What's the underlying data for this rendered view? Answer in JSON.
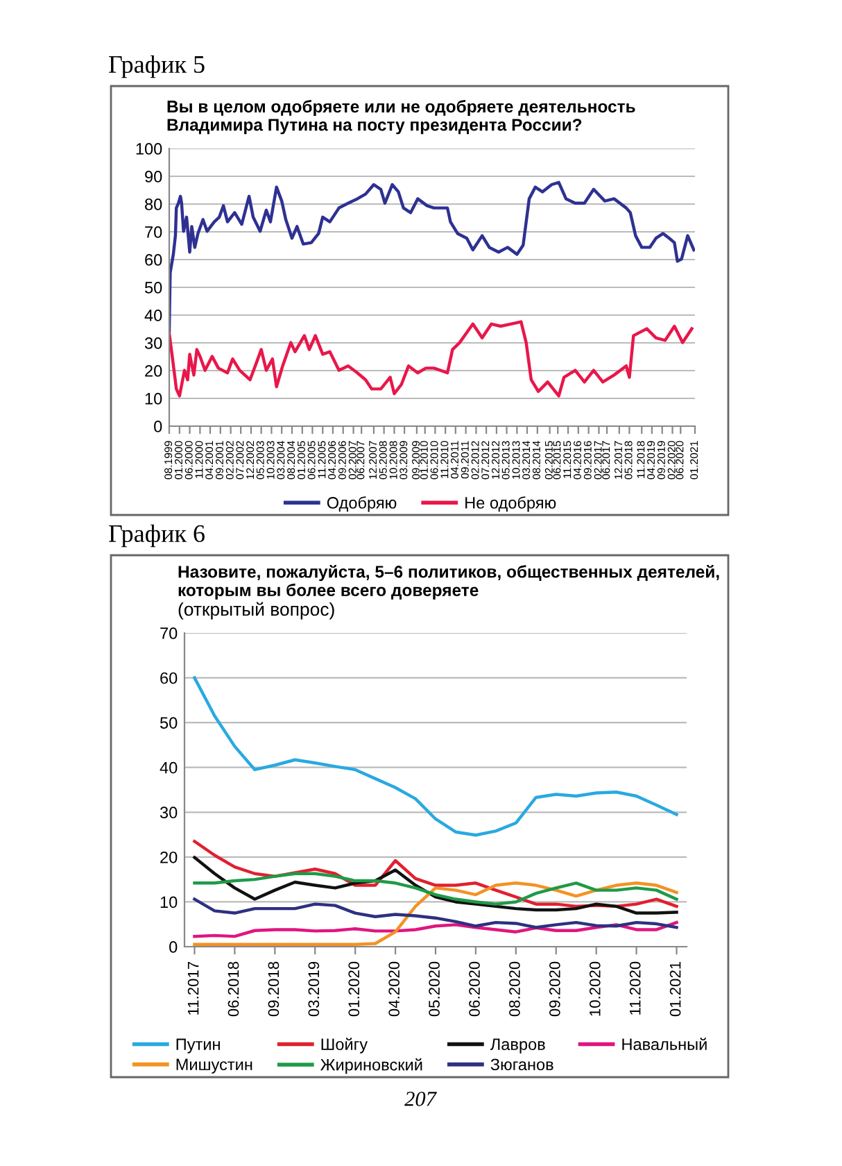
{
  "chart_data": [
    {
      "type": "line",
      "title": "График 5",
      "subtitle": "Вы в целом одобряете или не одобряете деятельность\nВладимира Путина на посту президента России?",
      "xlim": [
        "1999-08",
        "2021-01"
      ],
      "xticks": [
        {
          "value": "1999-08",
          "label": "08.1999"
        },
        {
          "value": "2000-01",
          "label": "01.2000"
        },
        {
          "value": "2000-06",
          "label": "06.2000"
        },
        {
          "value": "2000-11",
          "label": "11.2000"
        },
        {
          "value": "2001-04",
          "label": "04.2001"
        },
        {
          "value": "2001-09",
          "label": "09.2001"
        },
        {
          "value": "2002-02",
          "label": "02.2002"
        },
        {
          "value": "2002-07",
          "label": "07.2002"
        },
        {
          "value": "2002-12",
          "label": "12.2002"
        },
        {
          "value": "2003-05",
          "label": "05.2003"
        },
        {
          "value": "2003-10",
          "label": "10.2003"
        },
        {
          "value": "2004-03",
          "label": "03.2004"
        },
        {
          "value": "2004-08",
          "label": "08.2004"
        },
        {
          "value": "2005-01",
          "label": "01.2005"
        },
        {
          "value": "2005-06",
          "label": "06.2005"
        },
        {
          "value": "2005-11",
          "label": "11.2005"
        },
        {
          "value": "2006-04",
          "label": "04.2006"
        },
        {
          "value": "2006-09",
          "label": "09.2006"
        },
        {
          "value": "2007-02",
          "label": "02.2007"
        },
        {
          "value": "2007-06",
          "label": "06.2007"
        },
        {
          "value": "2007-12",
          "label": "12.2007"
        },
        {
          "value": "2008-05",
          "label": "05.2008"
        },
        {
          "value": "2008-10",
          "label": "10.2008"
        },
        {
          "value": "2009-03",
          "label": "03.2009"
        },
        {
          "value": "2009-09",
          "label": "09.2009"
        },
        {
          "value": "2010-01",
          "label": "01.2010"
        },
        {
          "value": "2010-06",
          "label": "06.2010"
        },
        {
          "value": "2010-11",
          "label": "11.2010"
        },
        {
          "value": "2011-04",
          "label": "04.2011"
        },
        {
          "value": "2011-09",
          "label": "09.2011"
        },
        {
          "value": "2012-02",
          "label": "02.2012"
        },
        {
          "value": "2012-07",
          "label": "07.2012"
        },
        {
          "value": "2012-12",
          "label": "12.2012"
        },
        {
          "value": "2013-05",
          "label": "05.2013"
        },
        {
          "value": "2013-10",
          "label": "10.2013"
        },
        {
          "value": "2014-03",
          "label": "03.2014"
        },
        {
          "value": "2014-08",
          "label": "08.2014"
        },
        {
          "value": "2015-02",
          "label": "02.2015"
        },
        {
          "value": "2015-06",
          "label": "06.2015"
        },
        {
          "value": "2015-11",
          "label": "11.2015"
        },
        {
          "value": "2016-04",
          "label": "04.2016"
        },
        {
          "value": "2016-09",
          "label": "09.2016"
        },
        {
          "value": "2017-02",
          "label": "02.2017"
        },
        {
          "value": "2017-06",
          "label": "06.2017"
        },
        {
          "value": "2017-12",
          "label": "12.2017"
        },
        {
          "value": "2018-05",
          "label": "05.2018"
        },
        {
          "value": "2018-11",
          "label": "11.2018"
        },
        {
          "value": "2019-04",
          "label": "04.2019"
        },
        {
          "value": "2019-09",
          "label": "09.2019"
        },
        {
          "value": "2020-02",
          "label": "02.2020"
        },
        {
          "value": "2020-06",
          "label": "06.2020"
        },
        {
          "value": "2021-01",
          "label": "01.2021"
        }
      ],
      "ylim": [
        0,
        100
      ],
      "yticks": [
        0,
        10,
        20,
        30,
        40,
        50,
        60,
        70,
        80,
        90,
        100
      ],
      "grid": "y",
      "legend": "bottom",
      "marker": "none",
      "line_style": "solid",
      "series": [
        {
          "name": "Одобряю",
          "color": "#2e3192",
          "x": [
            "1999-08-01",
            "1999-08-15",
            "1999-10-01",
            "1999-11-01",
            "1999-11-15",
            "1999-12-15",
            "2000-01-15",
            "2000-02-01",
            "2000-03-01",
            "2000-04-15",
            "2000-06-01",
            "2000-07-01",
            "2000-08-15",
            "2000-10-01",
            "2000-12-15",
            "2001-02-15",
            "2001-06-01",
            "2001-08-15",
            "2001-10-15",
            "2001-12-15",
            "2002-04-01",
            "2002-07-15",
            "2002-11-01",
            "2003-01-01",
            "2003-04-15",
            "2003-07-15",
            "2003-09-15",
            "2003-12-15",
            "2004-03-01",
            "2004-05-01",
            "2004-08-01",
            "2004-10-15",
            "2005-01-15",
            "2005-05-15",
            "2005-09-01",
            "2005-11-01",
            "2006-02-15",
            "2006-07-01",
            "2006-11-15",
            "2007-04-01",
            "2007-08-01",
            "2007-12-01",
            "2008-03-15",
            "2008-05-15",
            "2008-09-01",
            "2008-12-01",
            "2009-02-15",
            "2009-06-01",
            "2009-09-15",
            "2010-02-01",
            "2010-05-15",
            "2010-12-01",
            "2011-01-15",
            "2011-05-01",
            "2011-09-15",
            "2011-12-15",
            "2012-05-01",
            "2012-08-15",
            "2013-01-01",
            "2013-05-15",
            "2013-10-01",
            "2014-01-01",
            "2014-04-01",
            "2014-07-01",
            "2014-10-15",
            "2015-03-01",
            "2015-06-15",
            "2015-10-01",
            "2016-02-15",
            "2016-07-01",
            "2016-11-15",
            "2017-05-01",
            "2017-09-15",
            "2018-03-15",
            "2018-05-15",
            "2018-08-01",
            "2018-11-01",
            "2019-03-01",
            "2019-06-01",
            "2019-09-15",
            "2019-12-15",
            "2020-03-01",
            "2020-04-15",
            "2020-06-15",
            "2020-09-15",
            "2020-12-15"
          ],
          "values": [
            34.3,
            55.2,
            61.9,
            68.6,
            78.6,
            80.3,
            82.8,
            80.3,
            70.2,
            75.3,
            62.7,
            71.9,
            64.4,
            69.4,
            74.4,
            70.2,
            73.6,
            75.3,
            79.4,
            73.6,
            76.9,
            72.7,
            82.8,
            75.3,
            70.2,
            77.8,
            73.6,
            86.1,
            81.1,
            74.4,
            67.7,
            71.9,
            65.6,
            66.1,
            69.4,
            75.3,
            73.6,
            78.6,
            80.3,
            81.9,
            83.6,
            87,
            85.3,
            80.3,
            87,
            84.4,
            78.6,
            76.9,
            81.9,
            79.4,
            78.6,
            78.6,
            73.6,
            69.4,
            67.7,
            63.5,
            68.6,
            64.4,
            62.7,
            64.4,
            61.9,
            65.2,
            81.9,
            86.1,
            84.4,
            87,
            87.8,
            81.9,
            80.3,
            80.3,
            85.3,
            81.1,
            81.9,
            78.6,
            76.9,
            68.6,
            64.4,
            64.4,
            67.7,
            69.4,
            67.7,
            66.1,
            59.4,
            60.2,
            68.6,
            63.5
          ]
        },
        {
          "name": "Не одобряю",
          "color": "#e8174a",
          "x": [
            "1999-08-01",
            "1999-09-15",
            "1999-11-15",
            "2000-01-01",
            "2000-03-15",
            "2000-05-01",
            "2000-06-01",
            "2000-08-01",
            "2000-09-15",
            "2000-11-01",
            "2001-01-15",
            "2001-05-01",
            "2001-08-01",
            "2001-12-15",
            "2002-03-01",
            "2002-06-15",
            "2002-11-15",
            "2003-02-15",
            "2003-05-01",
            "2003-07-15",
            "2003-10-15",
            "2003-12-15",
            "2004-03-15",
            "2004-07-15",
            "2004-09-15",
            "2005-02-01",
            "2005-04-15",
            "2005-07-15",
            "2005-11-01",
            "2006-02-15",
            "2006-07-01",
            "2006-11-15",
            "2007-04-01",
            "2007-08-01",
            "2007-11-01",
            "2008-03-15",
            "2008-08-01",
            "2008-10-01",
            "2009-01-15",
            "2009-05-01",
            "2009-09-15",
            "2010-01-15",
            "2010-05-15",
            "2010-12-01",
            "2011-02-15",
            "2011-06-01",
            "2011-12-15",
            "2012-05-01",
            "2012-09-15",
            "2013-02-01",
            "2013-07-01",
            "2013-12-01",
            "2014-02-15",
            "2014-05-01",
            "2014-08-15",
            "2015-01-01",
            "2015-06-15",
            "2015-09-01",
            "2016-02-15",
            "2016-07-01",
            "2016-11-15",
            "2017-04-01",
            "2017-09-15",
            "2018-03-15",
            "2018-05-01",
            "2018-07-01",
            "2019-01-15",
            "2019-06-01",
            "2019-10-15",
            "2020-03-01",
            "2020-07-01",
            "2020-11-15"
          ],
          "values": [
            33.4,
            25.1,
            13.4,
            10.9,
            20.1,
            16.7,
            25.9,
            18.4,
            27.6,
            25.1,
            20.1,
            25.1,
            20.9,
            19.2,
            24.2,
            20.1,
            16.7,
            22.6,
            27.6,
            20.1,
            24.2,
            14.2,
            21.7,
            30.1,
            26.8,
            32.6,
            27.6,
            32.6,
            25.9,
            26.8,
            20.1,
            21.7,
            19.2,
            16.7,
            13.4,
            13.4,
            17.6,
            11.7,
            15,
            21.7,
            19.2,
            20.9,
            20.9,
            19.2,
            27.6,
            30.1,
            36.8,
            31.8,
            36.8,
            36,
            36.8,
            37.6,
            30.1,
            16.7,
            12.5,
            15.9,
            10.9,
            17.6,
            20.1,
            15.9,
            20.1,
            15.9,
            18.4,
            21.7,
            17.6,
            32.6,
            35.1,
            31.8,
            30.9,
            36,
            30.1,
            35.1
          ]
        }
      ]
    },
    {
      "type": "line",
      "title": "График 6",
      "subtitle": "Назовите, пожалуйста, 5–6 политиков, общественных деятелей,\nкоторым вы более всего доверяете",
      "annotations": [
        "(открытый вопрос)",
        "207"
      ],
      "categories": [
        "11.2017",
        null,
        "06.2018",
        null,
        "09.2018",
        null,
        "03.2019",
        null,
        "01.2020",
        null,
        "04.2020",
        null,
        "05.2020",
        null,
        "06.2020",
        null,
        "08.2020",
        null,
        "09.2020",
        null,
        "10.2020",
        null,
        "11.2020",
        null,
        "01.2021"
      ],
      "ylim": [
        0,
        70
      ],
      "yticks": [
        0,
        10,
        20,
        30,
        40,
        50,
        60,
        70
      ],
      "grid": "y",
      "legend": "bottom",
      "marker": "none",
      "line_style": "solid",
      "series": [
        {
          "name": "Путин",
          "color": "#29a9e0",
          "values": [
            60,
            51.5,
            44.7,
            39.5,
            40.5,
            41.7,
            41,
            40.2,
            39.5,
            37.5,
            35.5,
            33,
            28.5,
            25.6,
            24.9,
            25.8,
            27.6,
            33.3,
            34,
            33.6,
            34.3,
            34.5,
            33.6,
            31.6,
            29.5
          ]
        },
        {
          "name": "Шойгу",
          "color": "#e02030",
          "values": [
            23.5,
            20.4,
            17.8,
            16.3,
            15.7,
            16.5,
            17.3,
            16.3,
            13.7,
            13.7,
            19.2,
            15.2,
            13.7,
            13.7,
            14.2,
            12.6,
            11.1,
            9.5,
            9.5,
            9,
            9.2,
            9,
            9.5,
            10.6,
            9
          ]
        },
        {
          "name": "Лавров",
          "color": "#111111",
          "values": [
            19.9,
            16.3,
            13.1,
            10.6,
            12.6,
            14.4,
            13.7,
            13.1,
            14.2,
            14.7,
            17.1,
            13.7,
            11.1,
            10,
            9.5,
            9,
            8.5,
            8.2,
            8.2,
            8.5,
            9.5,
            9,
            7.5,
            7.5,
            7.7
          ]
        },
        {
          "name": "Навальный",
          "color": "#e0157f",
          "values": [
            2.3,
            2.5,
            2.3,
            3.6,
            3.8,
            3.8,
            3.5,
            3.6,
            4,
            3.5,
            3.5,
            3.8,
            4.6,
            4.9,
            4.3,
            3.8,
            3.3,
            4.2,
            3.6,
            3.6,
            4.3,
            4.9,
            3.8,
            3.8,
            5.4
          ]
        },
        {
          "name": "Мишустин",
          "color": "#f39224",
          "values": [
            0.5,
            0.5,
            0.5,
            0.5,
            0.5,
            0.5,
            0.5,
            0.5,
            0.5,
            0.7,
            3.3,
            9,
            13.1,
            12.6,
            11.6,
            13.7,
            14.2,
            13.7,
            12.6,
            11.3,
            12.6,
            13.7,
            14.2,
            13.7,
            12.1
          ]
        },
        {
          "name": "Жириновский",
          "color": "#1f9a48",
          "values": [
            14.2,
            14.2,
            14.7,
            15,
            15.7,
            16.3,
            16.3,
            15.7,
            14.7,
            14.7,
            14.2,
            13.1,
            11.6,
            10.6,
            10,
            9.5,
            10,
            11.9,
            13.1,
            14.2,
            12.6,
            12.6,
            13.1,
            12.6,
            10.6
          ]
        },
        {
          "name": "Зюганов",
          "color": "#2e3080",
          "values": [
            10.6,
            8,
            7.5,
            8.5,
            8.5,
            8.5,
            9.5,
            9.2,
            7.5,
            6.7,
            7.2,
            6.9,
            6.4,
            5.6,
            4.6,
            5.4,
            5.2,
            4.3,
            4.9,
            5.4,
            4.7,
            4.6,
            5.4,
            5.1,
            4.3
          ]
        }
      ]
    }
  ]
}
